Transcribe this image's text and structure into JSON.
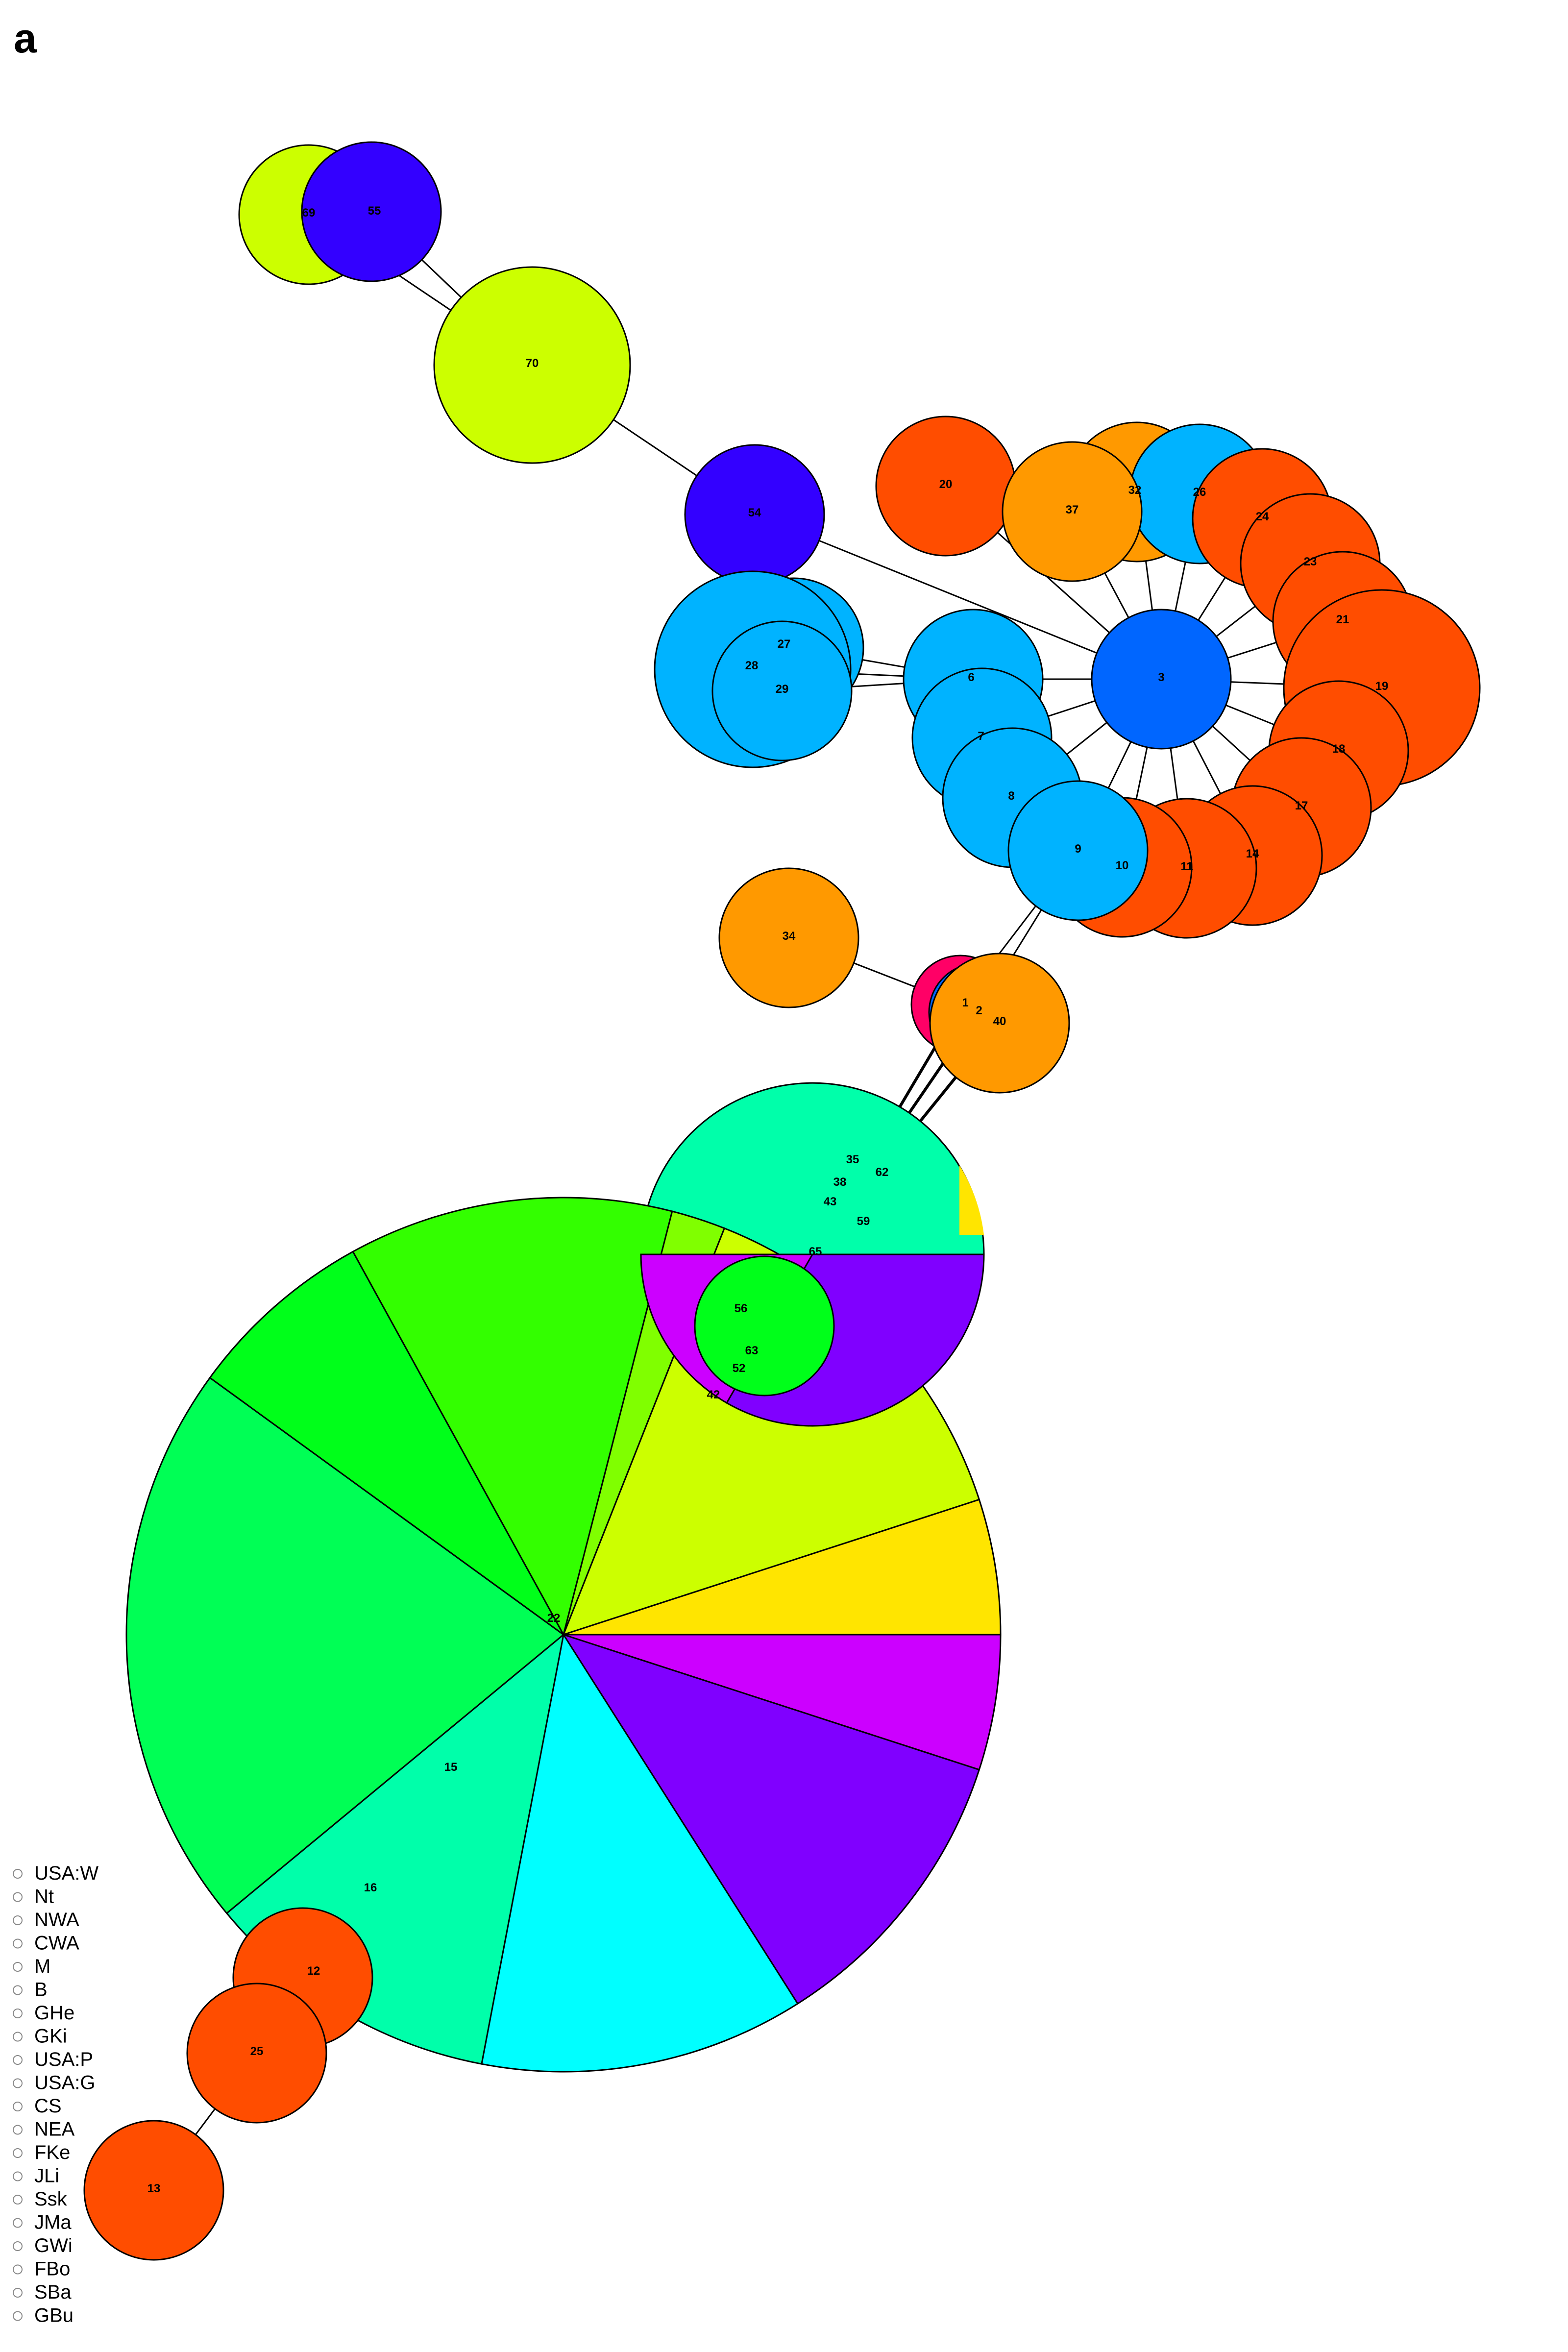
{
  "panel_label": "a",
  "legend": {
    "items": [
      "USA:W",
      "Nt",
      "NWA",
      "CWA",
      "M",
      "B",
      "GHe",
      "GKi",
      "USA:P",
      "USA:G",
      "CS",
      "NEA",
      "FKe",
      "JLi",
      "Ssk",
      "JMa",
      "GWi",
      "FBo",
      "SBa",
      "GBu"
    ]
  },
  "colors": {
    "orange_red": "#FF4D00",
    "orange": "#FF9900",
    "yellow": "#FFE500",
    "chartreuse": "#CCFF00",
    "lime": "#80FF00",
    "green_bright": "#33FF00",
    "green": "#00FF1A",
    "spring_green": "#00FF55",
    "aquamarine": "#00FFAA",
    "cyan": "#00FFFF",
    "sky_blue": "#00B3FF",
    "blue": "#0066FF",
    "indigo": "#3300FF",
    "violet": "#8000FF",
    "magenta": "#CC00FF",
    "crimson": "#FF0066"
  },
  "network": {
    "edges": [
      [
        "69",
        "70"
      ],
      [
        "55",
        "70"
      ],
      [
        "70",
        "54"
      ],
      [
        "54",
        "3"
      ],
      [
        "27",
        "6"
      ],
      [
        "28",
        "6"
      ],
      [
        "29",
        "6"
      ],
      [
        "3",
        "6"
      ],
      [
        "3",
        "7"
      ],
      [
        "3",
        "8"
      ],
      [
        "3",
        "9"
      ],
      [
        "3",
        "10"
      ],
      [
        "3",
        "11"
      ],
      [
        "3",
        "14"
      ],
      [
        "3",
        "17"
      ],
      [
        "3",
        "18"
      ],
      [
        "3",
        "19"
      ],
      [
        "3",
        "21"
      ],
      [
        "3",
        "23"
      ],
      [
        "3",
        "24"
      ],
      [
        "3",
        "26"
      ],
      [
        "3",
        "32"
      ],
      [
        "3",
        "37"
      ],
      [
        "3",
        "20"
      ],
      [
        "9",
        "1"
      ],
      [
        "9",
        "2"
      ],
      [
        "34",
        "1"
      ],
      [
        "1",
        "hub_upper"
      ],
      [
        "2",
        "hub_upper"
      ],
      [
        "40",
        "hub_upper"
      ],
      [
        "25",
        "12"
      ],
      [
        "25",
        "13"
      ]
    ],
    "nodes": [
      {
        "id": "69",
        "label": "69",
        "slices": [
          {
            "color": "chartreuse",
            "value": 1
          }
        ]
      },
      {
        "id": "55",
        "label": "55",
        "slices": [
          {
            "color": "indigo",
            "value": 1
          }
        ]
      },
      {
        "id": "70",
        "label": "70",
        "slices": [
          {
            "color": "chartreuse",
            "value": 1
          }
        ]
      },
      {
        "id": "54",
        "label": "54",
        "slices": [
          {
            "color": "indigo",
            "value": 1
          }
        ]
      },
      {
        "id": "20",
        "label": "20",
        "slices": [
          {
            "color": "orange_red",
            "value": 1
          }
        ]
      },
      {
        "id": "32",
        "label": "32",
        "slices": [
          {
            "color": "orange",
            "value": 1
          }
        ]
      },
      {
        "id": "26",
        "label": "26",
        "slices": [
          {
            "color": "sky_blue",
            "value": 1
          }
        ]
      },
      {
        "id": "24",
        "label": "24",
        "slices": [
          {
            "color": "orange_red",
            "value": 1
          }
        ]
      },
      {
        "id": "37",
        "label": "37",
        "slices": [
          {
            "color": "orange",
            "value": 1
          }
        ]
      },
      {
        "id": "23",
        "label": "23",
        "slices": [
          {
            "color": "orange_red",
            "value": 1
          }
        ]
      },
      {
        "id": "21",
        "label": "21",
        "slices": [
          {
            "color": "orange_red",
            "value": 1
          }
        ]
      },
      {
        "id": "19",
        "label": "19",
        "slices": [
          {
            "color": "orange_red",
            "value": 1
          }
        ]
      },
      {
        "id": "18",
        "label": "18",
        "slices": [
          {
            "color": "orange_red",
            "value": 1
          }
        ]
      },
      {
        "id": "17",
        "label": "17",
        "slices": [
          {
            "color": "orange_red",
            "value": 1
          }
        ]
      },
      {
        "id": "14",
        "label": "14",
        "slices": [
          {
            "color": "orange_red",
            "value": 1
          }
        ]
      },
      {
        "id": "11",
        "label": "11",
        "slices": [
          {
            "color": "orange_red",
            "value": 1
          }
        ]
      },
      {
        "id": "10",
        "label": "10",
        "slices": [
          {
            "color": "orange_red",
            "value": 1
          }
        ]
      },
      {
        "id": "27",
        "label": "27",
        "slices": [
          {
            "color": "sky_blue",
            "value": 1
          }
        ]
      },
      {
        "id": "28",
        "label": "28",
        "slices": [
          {
            "color": "sky_blue",
            "value": 1
          }
        ]
      },
      {
        "id": "29",
        "label": "29",
        "slices": [
          {
            "color": "sky_blue",
            "value": 1
          }
        ]
      },
      {
        "id": "6",
        "label": "6",
        "slices": [
          {
            "color": "sky_blue",
            "value": 1
          }
        ]
      },
      {
        "id": "7",
        "label": "7",
        "slices": [
          {
            "color": "sky_blue",
            "value": 1
          }
        ]
      },
      {
        "id": "8",
        "label": "8",
        "slices": [
          {
            "color": "sky_blue",
            "value": 1
          }
        ]
      },
      {
        "id": "9",
        "label": "9",
        "slices": [
          {
            "color": "sky_blue",
            "value": 1
          }
        ]
      },
      {
        "id": "3",
        "label": "3",
        "slices": [
          {
            "color": "blue",
            "value": 1
          }
        ]
      },
      {
        "id": "34",
        "label": "34",
        "slices": [
          {
            "color": "orange",
            "value": 1
          }
        ]
      },
      {
        "id": "1",
        "label": "1",
        "slices": [
          {
            "color": "crimson",
            "value": 1
          }
        ]
      },
      {
        "id": "2",
        "label": "2",
        "slices": [
          {
            "color": "blue",
            "value": 1
          }
        ]
      },
      {
        "id": "40",
        "label": "40",
        "slices": [
          {
            "color": "orange",
            "value": 1
          }
        ]
      },
      {
        "id": "hub_upper",
        "label": "",
        "slices": [
          {
            "color": "aquamarine",
            "value": 1
          }
        ]
      },
      {
        "id": "22",
        "label": "22",
        "slices": [
          {
            "color": "magenta",
            "value": 5
          },
          {
            "color": "violet",
            "value": 11
          },
          {
            "color": "cyan",
            "value": 12
          },
          {
            "color": "aquamarine",
            "value": 11
          },
          {
            "color": "spring_green",
            "value": 21
          },
          {
            "color": "green",
            "value": 7
          },
          {
            "color": "green_bright",
            "value": 12
          },
          {
            "color": "lime",
            "value": 2
          },
          {
            "color": "chartreuse",
            "value": 14
          },
          {
            "color": "yellow",
            "value": 5
          }
        ]
      },
      {
        "id": "lower_hub",
        "label": "",
        "slices": [
          {
            "color": "violet",
            "value": 2
          },
          {
            "color": "magenta",
            "value": 1
          }
        ]
      },
      {
        "id": "56",
        "label": "56",
        "slices": [
          {
            "color": "green",
            "value": 1
          }
        ]
      },
      {
        "id": "12",
        "label": "12",
        "slices": [
          {
            "color": "orange_red",
            "value": 1
          }
        ]
      },
      {
        "id": "25",
        "label": "25",
        "slices": [
          {
            "color": "orange_red",
            "value": 1
          }
        ]
      },
      {
        "id": "13",
        "label": "13",
        "slices": [
          {
            "color": "orange_red",
            "value": 1
          }
        ]
      }
    ],
    "labels": [
      "38",
      "43",
      "59",
      "65",
      "35",
      "62",
      "42",
      "52",
      "63",
      "15",
      "16"
    ]
  }
}
